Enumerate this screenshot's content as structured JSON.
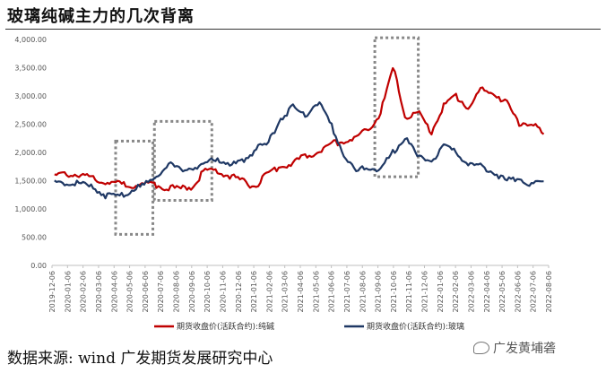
{
  "title": "玻璃纯碱主力的几次背离",
  "source": "数据来源: wind 广发期货发展研究中心",
  "watermark": "广发黄埔砻",
  "colors": {
    "soda": "#C00000",
    "glass": "#1F3864",
    "box": "#888888",
    "axis": "#bfbfbf"
  },
  "chart_data": {
    "type": "line",
    "title": "玻璃纯碱主力的几次背离",
    "xlabel": "",
    "ylabel": "",
    "ylim": [
      0,
      4000
    ],
    "yticks": [
      "0.00",
      "500.00",
      "1,000.00",
      "1,500.00",
      "2,000.00",
      "2,500.00",
      "3,000.00",
      "3,500.00",
      "4,000.00"
    ],
    "x_tick_labels": [
      "2019-12-06",
      "2020-01-06",
      "2020-02-06",
      "2020-03-06",
      "2020-04-06",
      "2020-05-06",
      "2020-06-06",
      "2020-07-06",
      "2020-08-06",
      "2020-09-06",
      "2020-10-06",
      "2020-11-06",
      "2020-12-06",
      "2021-01-06",
      "2021-02-06",
      "2021-03-06",
      "2021-04-06",
      "2021-05-06",
      "2021-06-06",
      "2021-07-06",
      "2021-08-06",
      "2021-09-06",
      "2021-10-06",
      "2021-11-06",
      "2021-12-06",
      "2022-01-06",
      "2022-02-06",
      "2022-03-06",
      "2022-04-06",
      "2022-05-06",
      "2022-06-06",
      "2022-07-06",
      "2022-08-06"
    ],
    "legend_position": "bottom",
    "series": [
      {
        "name": "期货收盘价(活跃合约):纯碱",
        "values": [
          1580,
          1620,
          1600,
          1560,
          1490,
          1440,
          1420,
          1440,
          1430,
          1380,
          1350,
          1400,
          1700,
          1650,
          1580,
          1480,
          1400,
          1620,
          1750,
          1800,
          1950,
          2000,
          2150,
          2200,
          2250,
          2400,
          2700,
          3500,
          2600,
          2700,
          2350,
          2800,
          3000,
          2800,
          3100,
          3050,
          2900,
          2500,
          2550,
          2300
        ]
      },
      {
        "name": "期货收盘价(活跃合约):玻璃",
        "values": [
          1450,
          1470,
          1440,
          1380,
          1250,
          1200,
          1320,
          1400,
          1550,
          1800,
          1700,
          1720,
          1800,
          1900,
          1750,
          1850,
          2050,
          2150,
          2600,
          2800,
          2650,
          2900,
          2500,
          2000,
          1650,
          1750,
          1700,
          2000,
          2300,
          1900,
          1850,
          2100,
          2000,
          1800,
          1750,
          1650,
          1500,
          1550,
          1450,
          1430
        ]
      }
    ],
    "boxes": [
      {
        "x0": 4.1,
        "x1": 6.5,
        "y0": 550,
        "y1": 2200
      },
      {
        "x0": 6.6,
        "x1": 10.3,
        "y0": 1150,
        "y1": 2550
      },
      {
        "x0": 20.8,
        "x1": 23.6,
        "y0": 1570,
        "y1": 4030
      }
    ]
  }
}
